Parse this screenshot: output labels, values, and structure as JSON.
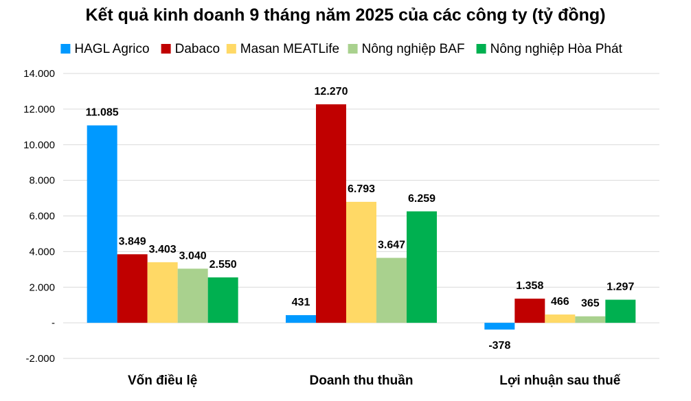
{
  "chart_data": {
    "type": "bar",
    "title": "Kết quả kinh doanh 9 tháng năm 2025 của các công ty (tỷ đồng)",
    "categories": [
      "Vốn điều lệ",
      "Doanh thu thuần",
      "Lợi nhuận sau thuế"
    ],
    "series": [
      {
        "name": "HAGL Agrico",
        "color": "#0099FF",
        "values": [
          11085,
          431,
          -378
        ],
        "labels": [
          "11.085",
          "431",
          "-378"
        ]
      },
      {
        "name": "Dabaco",
        "color": "#C00000",
        "values": [
          3849,
          12270,
          1358
        ],
        "labels": [
          "3.849",
          "12.270",
          "1.358"
        ]
      },
      {
        "name": "Masan MEATLife",
        "color": "#FFD966",
        "values": [
          3403,
          6793,
          466
        ],
        "labels": [
          "3.403",
          "6.793",
          "466"
        ]
      },
      {
        "name": "Nông nghiệp BAF",
        "color": "#A9D18E",
        "values": [
          3040,
          3647,
          365
        ],
        "labels": [
          "3.040",
          "3.647",
          "365"
        ]
      },
      {
        "name": "Nông nghiệp Hòa Phát",
        "color": "#00B050",
        "values": [
          2550,
          6259,
          1297
        ],
        "labels": [
          "2.550",
          "6.259",
          "1.297"
        ]
      }
    ],
    "yticks": [
      {
        "value": 14000,
        "label": "14.000"
      },
      {
        "value": 12000,
        "label": "12.000"
      },
      {
        "value": 10000,
        "label": "10.000"
      },
      {
        "value": 8000,
        "label": "8.000"
      },
      {
        "value": 6000,
        "label": "6.000"
      },
      {
        "value": 4000,
        "label": "4.000"
      },
      {
        "value": 2000,
        "label": "2.000"
      },
      {
        "value": 0,
        "label": "-"
      },
      {
        "value": -2000,
        "label": "-2.000"
      }
    ],
    "ylim": [
      -2000,
      14000
    ],
    "grid": true,
    "legend_position": "top"
  }
}
